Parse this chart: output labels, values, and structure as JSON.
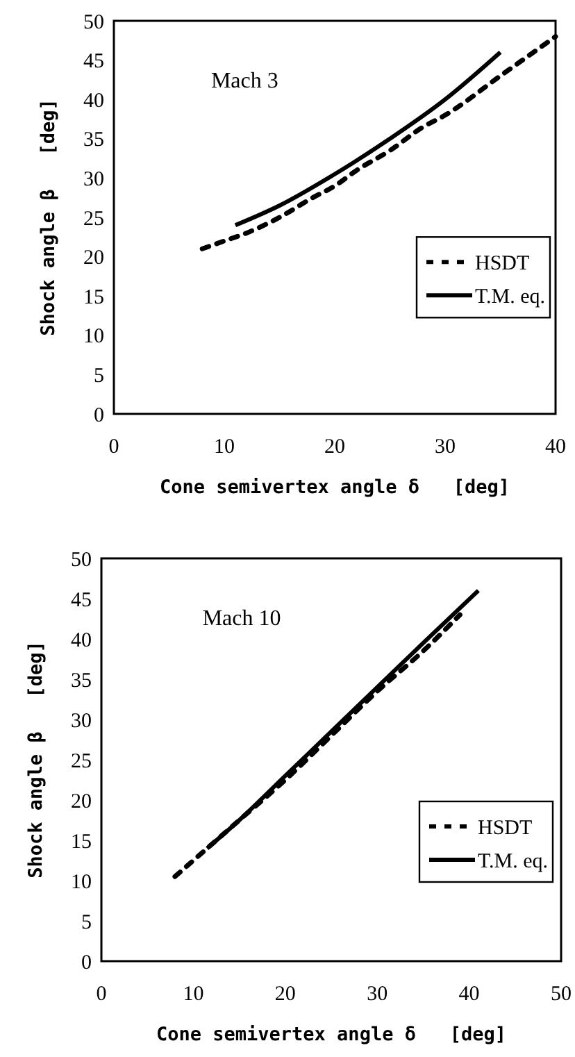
{
  "chart_data": [
    {
      "type": "line",
      "xlabel": "Cone semivertex angle δ   [deg]",
      "ylabel": "Shock angle β   [deg]",
      "annotations": [
        "Mach 3"
      ],
      "xlim": [
        0,
        40
      ],
      "xticks": [
        0,
        10,
        20,
        30,
        40
      ],
      "ylim": [
        0,
        50
      ],
      "yticks": [
        0,
        5,
        10,
        15,
        20,
        25,
        30,
        35,
        40,
        45,
        50
      ],
      "grid": false,
      "legend": "right",
      "series": [
        {
          "name": "HSDT",
          "color": "#000000",
          "line_style": "dashed",
          "x": [
            8,
            10,
            12,
            15,
            18,
            20,
            22,
            25,
            28,
            30,
            35,
            40
          ],
          "values": [
            21,
            22,
            23,
            25,
            27.5,
            29,
            31,
            33.5,
            36.5,
            38,
            43,
            48
          ]
        },
        {
          "name": "T.M. eq.",
          "color": "#000000",
          "line_style": "solid",
          "x": [
            11,
            15,
            20,
            25,
            30,
            35
          ],
          "values": [
            24,
            26.5,
            30.5,
            35,
            40,
            46
          ]
        }
      ]
    },
    {
      "type": "line",
      "xlabel": "Cone semivertex angle δ   [deg]",
      "ylabel": "Shock angle β   [deg]",
      "annotations": [
        "Mach 10"
      ],
      "xlim": [
        0,
        50
      ],
      "xticks": [
        0,
        10,
        20,
        30,
        40,
        50
      ],
      "ylim": [
        0,
        50
      ],
      "yticks": [
        0,
        5,
        10,
        15,
        20,
        25,
        30,
        35,
        40,
        45,
        50
      ],
      "grid": false,
      "legend": "bottom right",
      "series": [
        {
          "name": "HSDT",
          "color": "#000000",
          "line_style": "dashed",
          "x": [
            8,
            11,
            15,
            20,
            25,
            30,
            35,
            39
          ],
          "values": [
            10.5,
            13.5,
            17.5,
            22.5,
            28,
            33.5,
            38.5,
            43
          ]
        },
        {
          "name": "T.M. eq.",
          "color": "#000000",
          "line_style": "solid",
          "x": [
            11.5,
            15,
            20,
            25,
            30,
            35,
            41
          ],
          "values": [
            14,
            17.5,
            23,
            28.5,
            34,
            39.5,
            46
          ]
        }
      ]
    }
  ]
}
